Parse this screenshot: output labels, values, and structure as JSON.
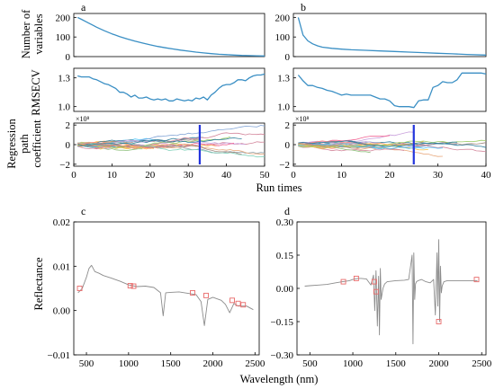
{
  "colors": {
    "cars_line": "#3a8fc4",
    "spectrum": "#8c8c8c",
    "marker": "#e86a6a",
    "selected_run": "#2233dd"
  },
  "chart_data": [
    {
      "id": "a",
      "letter": "a",
      "type": "line",
      "xlabel": "Run times",
      "xlim": [
        0,
        50
      ],
      "xticks": [
        "0",
        "10",
        "20",
        "30",
        "40",
        "50"
      ],
      "selected_run": 33,
      "subplots": {
        "variables": {
          "ylabel": [
            "Number of",
            "variables"
          ],
          "ylim": [
            0,
            220
          ],
          "yticks": [
            "0",
            "100",
            "200"
          ],
          "x": [
            1,
            2,
            3,
            4,
            5,
            6,
            8,
            10,
            12,
            14,
            16,
            18,
            20,
            22,
            24,
            26,
            28,
            30,
            32,
            34,
            36,
            38,
            40,
            42,
            44,
            46,
            48,
            50
          ],
          "y": [
            200,
            190,
            180,
            170,
            160,
            150,
            132,
            116,
            102,
            90,
            79,
            69,
            60,
            52,
            45,
            39,
            33,
            28,
            23,
            19,
            15,
            12,
            10,
            8,
            6,
            5,
            4,
            3
          ]
        },
        "rmsecv": {
          "ylabel": [
            "RMSECV"
          ],
          "ylim": [
            0.95,
            1.4
          ],
          "yticks": [
            "1.0",
            "1.3"
          ],
          "x": [
            1,
            2,
            3,
            4,
            5,
            6,
            7,
            8,
            9,
            10,
            11,
            12,
            13,
            14,
            15,
            16,
            17,
            18,
            19,
            20,
            21,
            22,
            23,
            24,
            25,
            26,
            27,
            28,
            29,
            30,
            31,
            32,
            33,
            34,
            35,
            36,
            37,
            38,
            39,
            40,
            41,
            42,
            43,
            44,
            45,
            46,
            47,
            48,
            49,
            50
          ],
          "y": [
            1.32,
            1.31,
            1.31,
            1.31,
            1.29,
            1.28,
            1.26,
            1.24,
            1.23,
            1.21,
            1.19,
            1.15,
            1.15,
            1.13,
            1.1,
            1.12,
            1.09,
            1.09,
            1.1,
            1.08,
            1.07,
            1.08,
            1.07,
            1.08,
            1.06,
            1.06,
            1.08,
            1.07,
            1.06,
            1.07,
            1.06,
            1.09,
            1.08,
            1.1,
            1.07,
            1.12,
            1.15,
            1.19,
            1.22,
            1.23,
            1.23,
            1.25,
            1.28,
            1.28,
            1.27,
            1.3,
            1.32,
            1.33,
            1.33,
            1.34
          ]
        },
        "coefficients": {
          "ylabel": [
            "Regression",
            "path",
            "coefficient"
          ],
          "scale_label": "×10⁸",
          "ylim": [
            -2.2,
            2.2
          ],
          "yticks": [
            "2",
            "0",
            "−2"
          ]
        }
      }
    },
    {
      "id": "b",
      "letter": "b",
      "type": "line",
      "xlabel": "Run times",
      "xlim": [
        0,
        40
      ],
      "xticks": [
        "0",
        "10",
        "20",
        "30",
        "40"
      ],
      "selected_run": 25,
      "subplots": {
        "variables": {
          "ylim": [
            0,
            220
          ],
          "yticks": [
            "0",
            "100",
            "200"
          ],
          "x": [
            1,
            2,
            3,
            4,
            5,
            6,
            8,
            10,
            12,
            15,
            18,
            21,
            24,
            27,
            30,
            33,
            36,
            40
          ],
          "y": [
            200,
            110,
            80,
            65,
            55,
            48,
            42,
            38,
            35,
            32,
            29,
            26,
            23,
            20,
            17,
            14,
            11,
            8
          ]
        },
        "rmsecv": {
          "ylim": [
            0.95,
            1.4
          ],
          "yticks": [
            "1.0",
            "1.3"
          ],
          "x": [
            1,
            2,
            3,
            4,
            5,
            6,
            7,
            8,
            9,
            10,
            11,
            12,
            13,
            14,
            15,
            16,
            17,
            18,
            19,
            20,
            21,
            22,
            23,
            24,
            25,
            26,
            27,
            28,
            29,
            30,
            31,
            32,
            33,
            34,
            35,
            36,
            37,
            38,
            39,
            40
          ],
          "y": [
            1.33,
            1.27,
            1.22,
            1.22,
            1.2,
            1.19,
            1.17,
            1.16,
            1.14,
            1.12,
            1.13,
            1.12,
            1.12,
            1.12,
            1.12,
            1.12,
            1.1,
            1.08,
            1.08,
            1.06,
            1.01,
            1.0,
            1.0,
            1.0,
            0.99,
            1.06,
            1.07,
            1.07,
            1.2,
            1.22,
            1.26,
            1.25,
            1.25,
            1.28,
            1.35,
            1.35,
            1.35,
            1.35,
            1.35,
            1.34
          ]
        },
        "coefficients": {
          "scale_label": "×10⁸",
          "ylim": [
            -2.2,
            2.2
          ],
          "yticks": [
            "2",
            "0",
            "−2"
          ]
        }
      }
    },
    {
      "id": "c",
      "letter": "c",
      "type": "line",
      "xlabel": "Wavelength (nm)",
      "ylabel": "Reflectance",
      "xlim": [
        350,
        2550
      ],
      "ylim": [
        -0.01,
        0.02
      ],
      "xticks": [
        500,
        1000,
        1500,
        2000,
        2500
      ],
      "yticks": [
        -0.01,
        0.0,
        0.01,
        0.02
      ],
      "ytick_labels": [
        "−0.01",
        "0.00",
        "0.01",
        "0.02"
      ],
      "x": [
        400,
        450,
        500,
        530,
        560,
        600,
        650,
        700,
        800,
        900,
        1000,
        1100,
        1200,
        1300,
        1380,
        1410,
        1440,
        1500,
        1600,
        1700,
        1800,
        1860,
        1900,
        1940,
        2000,
        2100,
        2150,
        2200,
        2250,
        2300,
        2350,
        2400,
        2450,
        2480
      ],
      "y": [
        0.004,
        0.005,
        0.0075,
        0.0095,
        0.0102,
        0.0088,
        0.0084,
        0.0079,
        0.0073,
        0.0066,
        0.0058,
        0.0054,
        0.0055,
        0.0052,
        0.004,
        -0.0012,
        0.004,
        0.0041,
        0.0042,
        0.0039,
        0.0036,
        0.002,
        -0.0034,
        0.0025,
        0.003,
        0.0023,
        0.0014,
        -0.0005,
        0.0016,
        0.001,
        0.001,
        0.001,
        0.0005,
        0.0002
      ],
      "markers": {
        "x": [
          420,
          1020,
          1060,
          1760,
          1920,
          2230,
          2300,
          2360
        ],
        "y": [
          0.005,
          0.0056,
          0.0055,
          0.004,
          0.0034,
          0.0023,
          0.0016,
          0.0013
        ]
      }
    },
    {
      "id": "d",
      "letter": "d",
      "type": "line",
      "xlabel": "Wavelength (nm)",
      "xlim": [
        350,
        2550
      ],
      "ylim": [
        -0.3,
        0.3
      ],
      "xticks": [
        500,
        1000,
        1500,
        2000,
        2500
      ],
      "yticks": [
        -0.3,
        -0.15,
        0.0,
        0.15,
        0.3
      ],
      "ytick_labels": [
        "−0.30",
        "−0.15",
        "0.00",
        "0.15",
        "0.30"
      ],
      "x": [
        440,
        500,
        600,
        700,
        800,
        880,
        960,
        1000,
        1060,
        1100,
        1160,
        1210,
        1240,
        1255,
        1270,
        1285,
        1300,
        1310,
        1320,
        1330,
        1350,
        1370,
        1400,
        1500,
        1600,
        1650,
        1690,
        1700,
        1710,
        1720,
        1730,
        1740,
        1760,
        1800,
        1850,
        1900,
        1940,
        1960,
        1980,
        1990,
        2000,
        2010,
        2020,
        2030,
        2040,
        2060,
        2100,
        2200,
        2300,
        2400,
        2450
      ],
      "y": [
        0.01,
        0.012,
        0.015,
        0.018,
        0.025,
        0.03,
        0.035,
        0.04,
        0.045,
        0.045,
        0.042,
        0.015,
        0.06,
        -0.1,
        0.08,
        -0.17,
        0.055,
        -0.21,
        0.09,
        -0.05,
        0.0,
        0.02,
        0.03,
        0.035,
        0.037,
        0.04,
        0.15,
        -0.25,
        0.16,
        -0.05,
        0.02,
        0.03,
        0.035,
        0.04,
        0.03,
        0.025,
        0.04,
        -0.12,
        0.16,
        -0.08,
        0.22,
        -0.15,
        0.1,
        -0.02,
        0.01,
        0.03,
        0.035,
        0.035,
        0.035,
        0.035,
        0.035
      ],
      "markers": {
        "x": [
          890,
          1040,
          1250,
          1270,
          2000,
          2440
        ],
        "y": [
          0.03,
          0.045,
          0.03,
          -0.015,
          -0.15,
          0.04
        ]
      }
    }
  ]
}
